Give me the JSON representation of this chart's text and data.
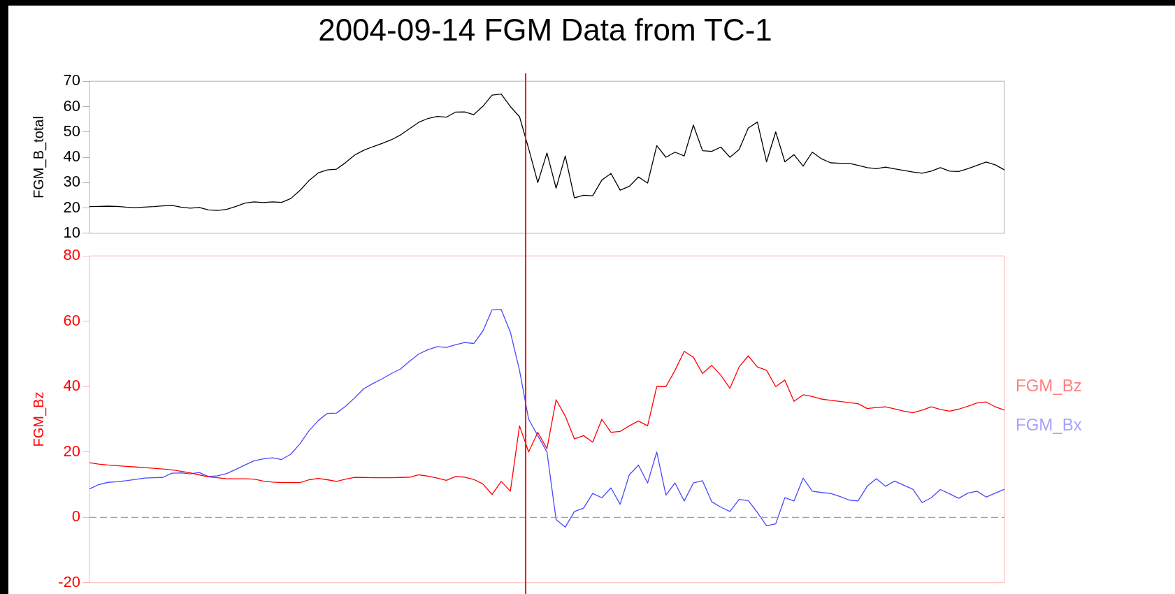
{
  "chart_data": [
    {
      "type": "line",
      "title": "2004-09-14 FGM Data from TC-1",
      "ylabel": "FGM_B_total",
      "categories": [
        null,
        null,
        null,
        null,
        null,
        null,
        null,
        null,
        null,
        null,
        null,
        null,
        null,
        null,
        null,
        null,
        null,
        null,
        null,
        null,
        null,
        null,
        null,
        null,
        null,
        null,
        null,
        null,
        null,
        null,
        null,
        null,
        null,
        null,
        null,
        null,
        null,
        null,
        null,
        null,
        null,
        null,
        null,
        null,
        null,
        null,
        null,
        null,
        null,
        null,
        null,
        null,
        null,
        null,
        null,
        null,
        null,
        null,
        null,
        null,
        null,
        null,
        null,
        null,
        null,
        null,
        null,
        null,
        null,
        null,
        null,
        null,
        null,
        null,
        null,
        null,
        null,
        null,
        null,
        null,
        null,
        null,
        null,
        null,
        null,
        null,
        null,
        null,
        null,
        null,
        null,
        null,
        null,
        null,
        null,
        null,
        null,
        null,
        null,
        null,
        null
      ],
      "ylim": [
        10,
        70
      ],
      "yticks": [
        10,
        20,
        30,
        40,
        50,
        60,
        70
      ],
      "tick_labels": "y",
      "series": [
        {
          "color": "#000000",
          "values": [
            20.5,
            20.6,
            20.7,
            20.6,
            20.3,
            20.1,
            20.3,
            20.5,
            20.8,
            21,
            20.3,
            19.9,
            20.2,
            19.2,
            19,
            19.4,
            20.6,
            21.9,
            22.4,
            22.1,
            22.4,
            22.2,
            23.7,
            26.9,
            30.8,
            33.8,
            35,
            35.3,
            37.9,
            40.9,
            42.8,
            44.2,
            45.5,
            46.9,
            48.8,
            51.3,
            53.8,
            55.3,
            56.1,
            55.8,
            57.8,
            57.9,
            56.8,
            60.1,
            64.5,
            64.9,
            60,
            56,
            43.4,
            30,
            41.7,
            27.8,
            40.5,
            24,
            25,
            24.8,
            31,
            33.6,
            27,
            28.5,
            32.2,
            29.8,
            44.6,
            40,
            42,
            40.5,
            52.7,
            42.6,
            42.3,
            44,
            40,
            43,
            51.5,
            53.9,
            38.2,
            50,
            38.2,
            41,
            36.5,
            42,
            39.4,
            37.8,
            37.6,
            37.6,
            36.8,
            35.9,
            35.5,
            36.1,
            35.4,
            34.8,
            34.2,
            33.7,
            34.5,
            35.9,
            34.5,
            34.4,
            35.5,
            36.8,
            38.1,
            37,
            35
          ]
        }
      ]
    },
    {
      "type": "line",
      "ylabel": "FGM_Bz",
      "categories": [
        null,
        null,
        null,
        null,
        null,
        null,
        null,
        null,
        null,
        null,
        null,
        null,
        null,
        null,
        null,
        null,
        null,
        null,
        null,
        null,
        null,
        null,
        null,
        null,
        null,
        null,
        null,
        null,
        null,
        null,
        null,
        null,
        null,
        null,
        null,
        null,
        null,
        null,
        null,
        null,
        null,
        null,
        null,
        null,
        null,
        null,
        null,
        null,
        null,
        null,
        null,
        null,
        null,
        null,
        null,
        null,
        null,
        null,
        null,
        null,
        null,
        null,
        null,
        null,
        null,
        null,
        null,
        null,
        null,
        null,
        null,
        null,
        null,
        null,
        null,
        null,
        null,
        null,
        null,
        null,
        null,
        null,
        null,
        null,
        null,
        null,
        null,
        null,
        null,
        null,
        null,
        null,
        null,
        null,
        null,
        null,
        null,
        null,
        null,
        null,
        null
      ],
      "ylim": [
        -20,
        80
      ],
      "yticks": [
        -20,
        0,
        20,
        40,
        60,
        80
      ],
      "tick_labels": "y",
      "series": [
        {
          "name": "FGM_Bz",
          "color": "#ff0000",
          "values": [
            16.7,
            16.3,
            16,
            15.8,
            15.6,
            15.4,
            15.2,
            15,
            14.8,
            14.5,
            14.1,
            13.6,
            13,
            12.4,
            12.1,
            11.8,
            11.8,
            11.8,
            11.7,
            11.1,
            10.8,
            10.6,
            10.6,
            10.6,
            11.5,
            11.9,
            11.5,
            11,
            11.7,
            12.2,
            12.2,
            12.1,
            12.1,
            12.1,
            12.2,
            12.3,
            13,
            12.6,
            12,
            11.3,
            12.5,
            12.3,
            11.6,
            10.2,
            7,
            11,
            8,
            28,
            20,
            26,
            21,
            36,
            31,
            24,
            25,
            23,
            30,
            26,
            26.3,
            28,
            29.5,
            28,
            40,
            40,
            45,
            50.8,
            49,
            44,
            46.5,
            43.5,
            39.5,
            46,
            49.4,
            46,
            45,
            40,
            42,
            35.5,
            37.5,
            37,
            36.2,
            35.8,
            35.5,
            35.1,
            34.8,
            33.3,
            33.6,
            33.8,
            33.2,
            32.5,
            32,
            32.8,
            33.8,
            33,
            32.5,
            33.1,
            34,
            35,
            35.3,
            33.8,
            32.8
          ]
        },
        {
          "name": "FGM_Bx",
          "color": "#4848ff",
          "values": [
            8.7,
            10,
            10.7,
            10.9,
            11.2,
            11.6,
            12,
            12.1,
            12.2,
            13.5,
            13.6,
            13.3,
            13.7,
            12.5,
            12.7,
            13.4,
            14.7,
            16,
            17.3,
            17.9,
            18.2,
            17.7,
            19.3,
            22.5,
            26.5,
            29.6,
            31.8,
            31.9,
            34,
            36.6,
            39.4,
            41,
            42.4,
            44,
            45.4,
            47.8,
            50,
            51.3,
            52.2,
            52,
            52.8,
            53.5,
            53.2,
            57,
            63.5,
            63.6,
            56.7,
            45,
            30,
            25,
            20,
            -0.7,
            -3,
            1.8,
            2.8,
            7.3,
            6,
            9,
            4,
            13,
            16,
            10.5,
            20,
            6.8,
            10.5,
            5,
            10.5,
            11.2,
            4.8,
            3.1,
            1.8,
            5.5,
            5.1,
            1.5,
            -2.6,
            -2,
            6,
            5,
            12,
            8,
            7.6,
            7.3,
            6.4,
            5.3,
            5,
            9.5,
            11.8,
            9.5,
            11.1,
            9.8,
            8.6,
            4.5,
            6,
            8.5,
            7.2,
            5.8,
            7.4,
            8,
            6.2,
            7.4,
            8.6
          ]
        }
      ],
      "ref_lines": [
        {
          "axis": "y",
          "value": 0,
          "color": "#a0a0a0",
          "line_style": "dashed"
        }
      ]
    }
  ]
}
